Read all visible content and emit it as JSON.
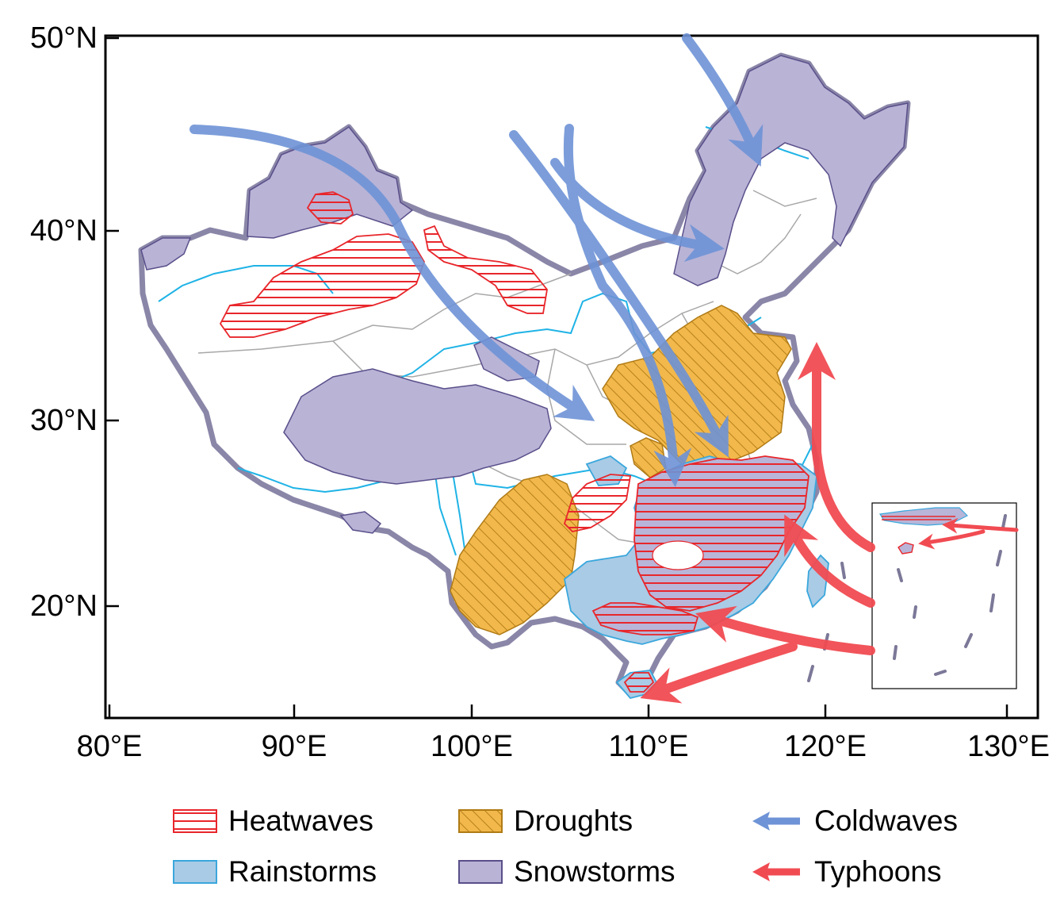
{
  "map": {
    "axes": {
      "lat_ticks": [
        {
          "value": 50,
          "label": "50°N"
        },
        {
          "value": 40,
          "label": "40°N"
        },
        {
          "value": 30,
          "label": "30°N"
        },
        {
          "value": 20,
          "label": "20°N"
        }
      ],
      "lon_ticks": [
        {
          "value": 80,
          "label": "80°E"
        },
        {
          "value": 90,
          "label": "90°E"
        },
        {
          "value": 100,
          "label": "100°E"
        },
        {
          "value": 110,
          "label": "110°E"
        },
        {
          "value": 120,
          "label": "120°E"
        },
        {
          "value": 130,
          "label": "130°E"
        }
      ]
    },
    "legend": [
      {
        "key": "heatwaves",
        "label": "Heatwaves",
        "swatch": "hatch-red"
      },
      {
        "key": "droughts",
        "label": "Droughts",
        "swatch": "hatch-orange"
      },
      {
        "key": "coldwaves",
        "label": "Coldwaves",
        "swatch": "arrow-blue"
      },
      {
        "key": "rainstorms",
        "label": "Rainstorms",
        "swatch": "fill-lightblue"
      },
      {
        "key": "snowstorms",
        "label": "Snowstorms",
        "swatch": "fill-lavender"
      },
      {
        "key": "typhoons",
        "label": "Typhoons",
        "swatch": "arrow-red"
      }
    ],
    "colors": {
      "heatwave_line": "#e8262b",
      "drought_fill": "#f2b84b",
      "drought_hatch": "#b07b16",
      "coldwave_arrow": "#6e93d6",
      "rainstorm_fill": "#a9cbe6",
      "rainstorm_edge": "#3aa7dc",
      "snowstorm_fill": "#b9b3d6",
      "snowstorm_edge": "#5a4f8a",
      "typhoon_arrow": "#f14b52",
      "river": "#1fb3e6",
      "province_border": "#a8a8a8",
      "country_border": "#8a86a8"
    }
  }
}
